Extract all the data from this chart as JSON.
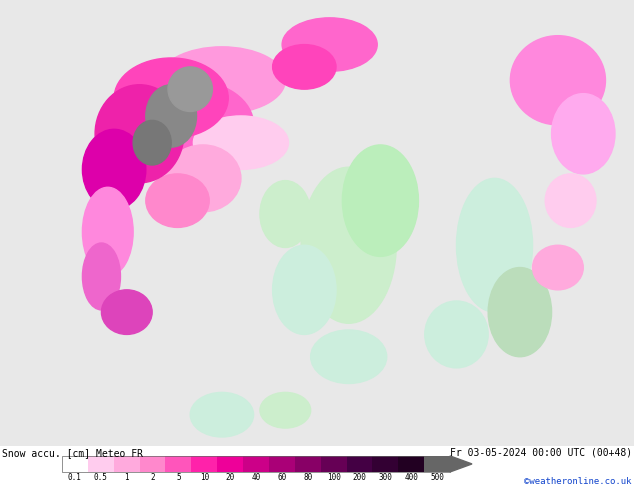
{
  "title_left": "Snow accu. [cm] Meteo FR",
  "title_right": "Fr 03-05-2024 00:00 UTC (00+48)",
  "credit": "©weatheronline.co.uk",
  "colorbar_labels": [
    "0.1",
    "0.5",
    "1",
    "2",
    "5",
    "10",
    "20",
    "40",
    "60",
    "80",
    "100",
    "200",
    "300",
    "400",
    "500"
  ],
  "colorbar_colors": [
    "#ffffff",
    "#ffccee",
    "#ffaadd",
    "#ff88cc",
    "#ff55bb",
    "#ff22aa",
    "#ee0099",
    "#cc0088",
    "#aa0077",
    "#880066",
    "#660055",
    "#440044",
    "#330033",
    "#220022",
    "#666666"
  ],
  "map_colors": {
    "background": "#e0e0e0",
    "sea": "#ddeedd",
    "land_base": "#f0f0ee",
    "snow_light": "#ffccff",
    "snow_mid": "#ff66cc",
    "snow_heavy": "#990077",
    "snow_extreme": "#440044",
    "green_light": "#ccffcc",
    "green_mid": "#aaddaa"
  },
  "fig_width": 6.34,
  "fig_height": 4.9,
  "dpi": 100
}
